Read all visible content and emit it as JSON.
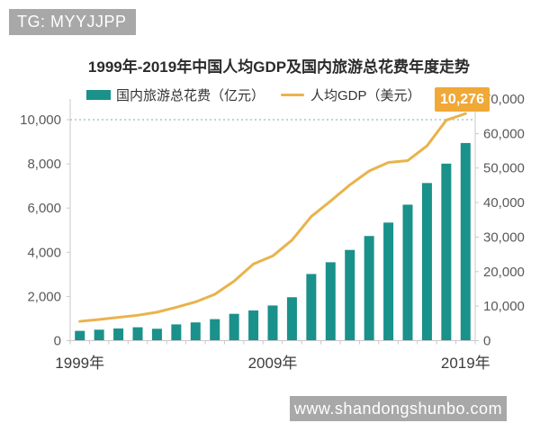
{
  "watermarks": {
    "top": "TG: MYYJJPP",
    "bottom": "www.shandongshunbo.com"
  },
  "chart_data": {
    "type": "combo",
    "title": "1999年-2019年中国人均GDP及国内旅游总花费年度走势",
    "categories": [
      1999,
      2000,
      2001,
      2002,
      2003,
      2004,
      2005,
      2006,
      2007,
      2008,
      2009,
      2010,
      2011,
      2012,
      2013,
      2014,
      2015,
      2016,
      2017,
      2018,
      2019
    ],
    "x_ticks": {
      "indices": [
        0,
        10,
        20
      ],
      "labels": [
        "1999年",
        "2009年",
        "2019年"
      ]
    },
    "series": [
      {
        "name": "国内旅游总花费（亿元）",
        "type": "bar",
        "axis": "right",
        "color": "#1a918b",
        "values": [
          2832,
          3176,
          3522,
          3878,
          3442,
          4711,
          5286,
          6230,
          7771,
          8749,
          10184,
          12580,
          19305,
          22706,
          26276,
          30312,
          34195,
          39390,
          45661,
          51278,
          57251
        ]
      },
      {
        "name": "人均GDP（美元）",
        "type": "line",
        "axis": "left",
        "color": "#e9b34b",
        "values": [
          873,
          959,
          1053,
          1148,
          1288,
          1509,
          1753,
          2099,
          2694,
          3468,
          3832,
          4550,
          5618,
          6316,
          7050,
          7678,
          8066,
          8148,
          8817,
          9977,
          10276
        ]
      }
    ],
    "left_axis": {
      "min": 0,
      "max": 10000,
      "step": 2000
    },
    "right_axis": {
      "min": 0,
      "max": 70000,
      "step": 10000
    },
    "reference_line": {
      "axis": "left",
      "value": 10000,
      "color": "#9fccc7",
      "style": "dotted"
    },
    "annotation": {
      "text": "10,276",
      "bg_color": "#f0a837",
      "text_color": "#ffffff"
    },
    "legend_position": "top",
    "grid": false
  }
}
